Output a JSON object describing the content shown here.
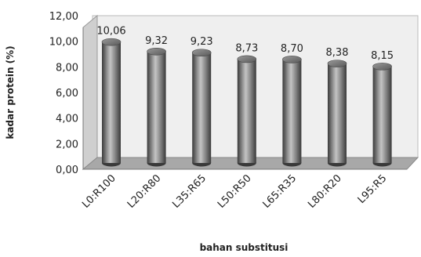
{
  "chart_data": {
    "type": "bar",
    "style": "3d-cylinder",
    "categories": [
      "L0:R100",
      "L20:R80",
      "L35:R65",
      "L50:R50",
      "L65:R35",
      "L80:R20",
      "L95:R5"
    ],
    "values": [
      10.06,
      9.32,
      9.23,
      8.73,
      8.7,
      8.38,
      8.15
    ],
    "data_labels": [
      "10,06",
      "9,32",
      "9,23",
      "8,73",
      "8,70",
      "8,38",
      "8,15"
    ],
    "ylim": [
      0,
      12
    ],
    "yticks": [
      0,
      2,
      4,
      6,
      8,
      10,
      12
    ],
    "ytick_labels": [
      "0,00",
      "2,00",
      "4,00",
      "6,00",
      "8,00",
      "10,00",
      "12,00"
    ],
    "xlabel": "bahan substitusi",
    "ylabel": "kadar protein (%)",
    "grid": false,
    "legend": "none",
    "colors": {
      "bar": "#7f7f7f",
      "bar_dark": "#3a3a3a",
      "bar_light": "#d4d4d4",
      "wall": "#efefef",
      "floor": "#a8a8a8"
    }
  }
}
